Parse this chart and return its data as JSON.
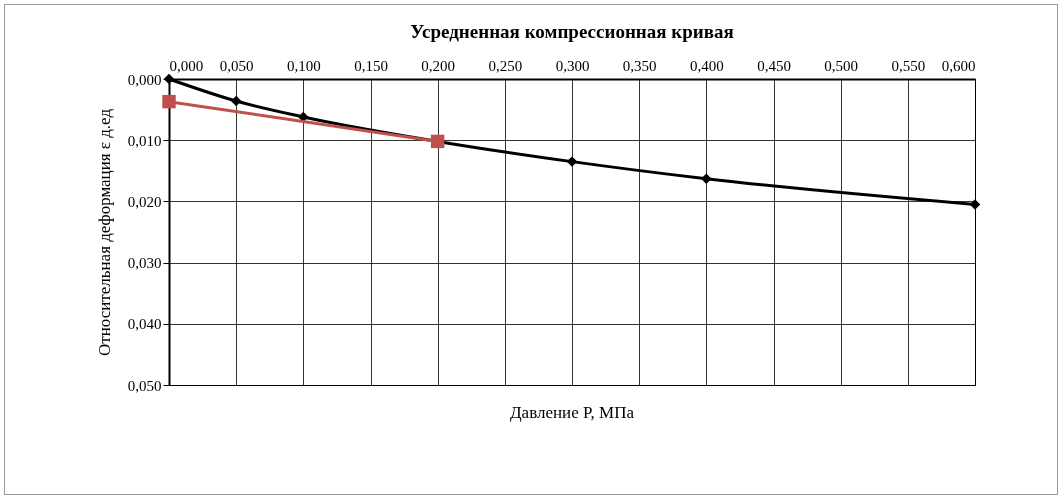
{
  "chart_data": {
    "type": "line",
    "title": "Усредненная компрессионная кривая",
    "xlabel": "Давление P, МПа",
    "ylabel": "Относительная деформация ε д.ед",
    "xlim": [
      0,
      0.6
    ],
    "xticks": [
      {
        "value": 0,
        "label": "0,000"
      },
      {
        "value": 0.05,
        "label": "0,050"
      },
      {
        "value": 0.1,
        "label": "0,100"
      },
      {
        "value": 0.15,
        "label": "0,150"
      },
      {
        "value": 0.2,
        "label": "0,200"
      },
      {
        "value": 0.25,
        "label": "0,250"
      },
      {
        "value": 0.3,
        "label": "0,300"
      },
      {
        "value": 0.35,
        "label": "0,350"
      },
      {
        "value": 0.4,
        "label": "0,400"
      },
      {
        "value": 0.45,
        "label": "0,450"
      },
      {
        "value": 0.5,
        "label": "0,500"
      },
      {
        "value": 0.55,
        "label": "0,550"
      },
      {
        "value": 0.6,
        "label": "0,600"
      }
    ],
    "ylim": [
      0.05,
      0
    ],
    "yticks": [
      {
        "value": 0,
        "label": "0,000"
      },
      {
        "value": 0.01,
        "label": "0,010"
      },
      {
        "value": 0.02,
        "label": "0,020"
      },
      {
        "value": 0.03,
        "label": "0,030"
      },
      {
        "value": 0.04,
        "label": "0,040"
      },
      {
        "value": 0.05,
        "label": "0,050"
      }
    ],
    "grid": true,
    "series": [
      {
        "color": "#000000",
        "marker": "diamond",
        "x": [
          0,
          0.05,
          0.1,
          0.2,
          0.3,
          0.4,
          0.6
        ],
        "values": [
          0,
          0.0036,
          0.0062,
          0.0102,
          0.0135,
          0.0163,
          0.0205
        ]
      },
      {
        "color": "#c0504d",
        "marker": "square",
        "x": [
          0,
          0.2
        ],
        "values": [
          0.0037,
          0.0102
        ]
      }
    ]
  }
}
